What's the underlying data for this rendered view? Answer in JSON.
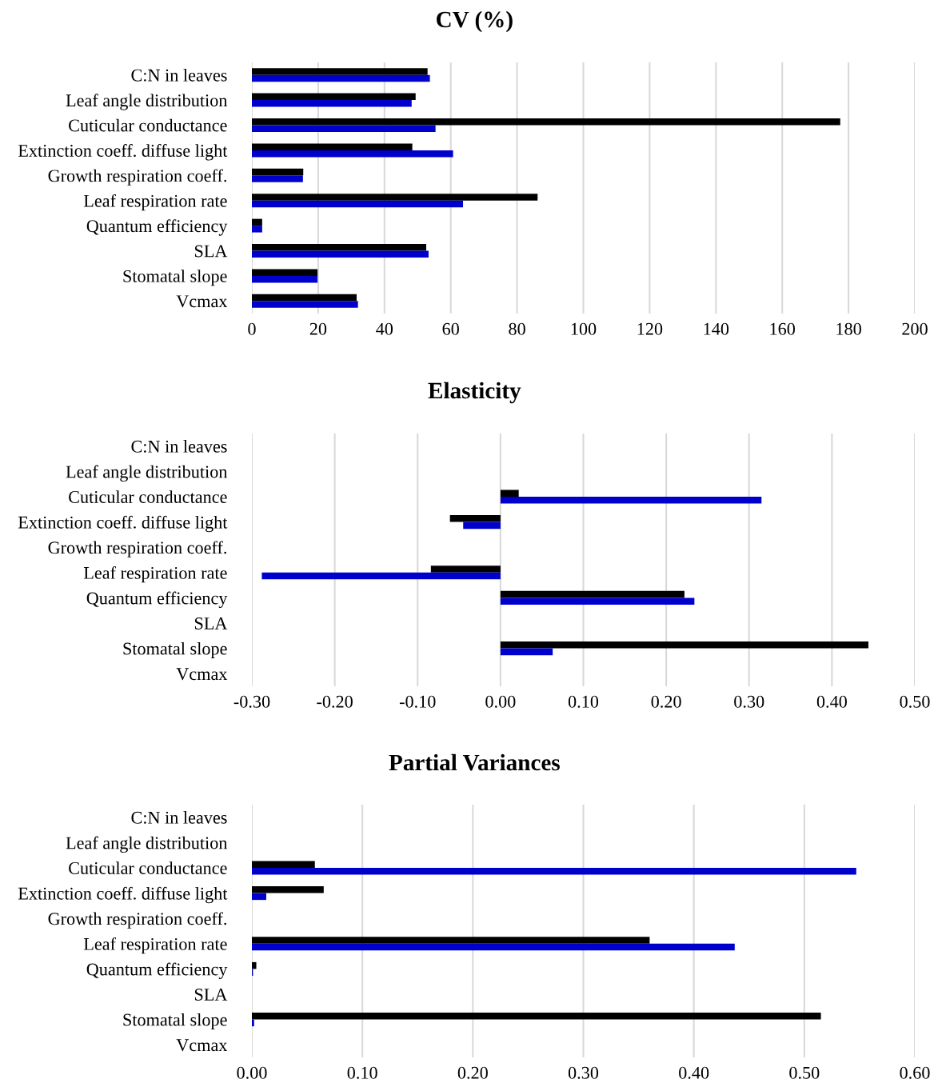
{
  "chart_data": [
    {
      "type": "bar",
      "orientation": "horizontal",
      "title": "CV (%)",
      "categories": [
        "C:N in leaves",
        "Leaf angle distribution",
        "Cuticular conductance",
        "Extinction coeff. diffuse light",
        "Growth respiration coeff.",
        "Leaf respiration rate",
        "Quantum efficiency",
        "SLA",
        "Stomatal slope",
        "Vcmax"
      ],
      "series": [
        {
          "color": "#000000",
          "values": [
            53.0,
            49.4,
            177.5,
            48.4,
            15.5,
            86.2,
            3.1,
            52.6,
            19.8,
            31.6
          ]
        },
        {
          "color": "#0000cc",
          "values": [
            53.7,
            48.2,
            55.4,
            60.7,
            15.4,
            63.7,
            3.1,
            53.3,
            19.8,
            32.0
          ]
        }
      ],
      "xlim": [
        0,
        200
      ],
      "xticks": [
        0,
        20,
        40,
        60,
        80,
        100,
        120,
        140,
        160,
        180,
        200
      ],
      "grid": "x",
      "legend": false
    },
    {
      "type": "bar",
      "orientation": "horizontal",
      "title": "Elasticity",
      "categories": [
        "C:N in leaves",
        "Leaf angle distribution",
        "Cuticular conductance",
        "Extinction coeff. diffuse light",
        "Growth respiration coeff.",
        "Leaf respiration rate",
        "Quantum efficiency",
        "SLA",
        "Stomatal slope",
        "Vcmax"
      ],
      "series": [
        {
          "color": "#000000",
          "values": [
            null,
            null,
            0.022,
            -0.061,
            null,
            -0.084,
            0.222,
            null,
            0.444,
            null
          ]
        },
        {
          "color": "#0000cc",
          "values": [
            null,
            null,
            0.315,
            -0.045,
            null,
            -0.288,
            0.234,
            null,
            0.063,
            null
          ]
        }
      ],
      "xlim": [
        -0.3,
        0.5
      ],
      "xticks": [
        {
          "value": -0.3,
          "label": "-0.30"
        },
        {
          "value": -0.2,
          "label": "-0.20"
        },
        {
          "value": -0.1,
          "label": "-0.10"
        },
        {
          "value": 0,
          "label": "0.00"
        },
        {
          "value": 0.1,
          "label": "0.10"
        },
        {
          "value": 0.2,
          "label": "0.20"
        },
        {
          "value": 0.3,
          "label": "0.30"
        },
        {
          "value": 0.4,
          "label": "0.40"
        },
        {
          "value": 0.5,
          "label": "0.50"
        }
      ],
      "grid": "x",
      "legend": false
    },
    {
      "type": "bar",
      "orientation": "horizontal",
      "title": "Partial Variances",
      "categories": [
        "C:N in leaves",
        "Leaf angle distribution",
        "Cuticular conductance",
        "Extinction coeff. diffuse light",
        "Growth respiration coeff.",
        "Leaf respiration rate",
        "Quantum efficiency",
        "SLA",
        "Stomatal slope",
        "Vcmax"
      ],
      "series": [
        {
          "color": "#000000",
          "values": [
            null,
            null,
            0.057,
            0.065,
            null,
            0.36,
            0.004,
            null,
            0.515,
            null
          ]
        },
        {
          "color": "#0000cc",
          "values": [
            null,
            null,
            0.547,
            0.013,
            null,
            0.437,
            0.001,
            null,
            0.002,
            null
          ]
        }
      ],
      "xlim": [
        0,
        0.6
      ],
      "xticks": [
        {
          "value": 0,
          "label": "0.00"
        },
        {
          "value": 0.1,
          "label": "0.10"
        },
        {
          "value": 0.2,
          "label": "0.20"
        },
        {
          "value": 0.3,
          "label": "0.30"
        },
        {
          "value": 0.4,
          "label": "0.40"
        },
        {
          "value": 0.5,
          "label": "0.50"
        },
        {
          "value": 0.6,
          "label": "0.60"
        }
      ],
      "grid": "x",
      "legend": false
    }
  ]
}
